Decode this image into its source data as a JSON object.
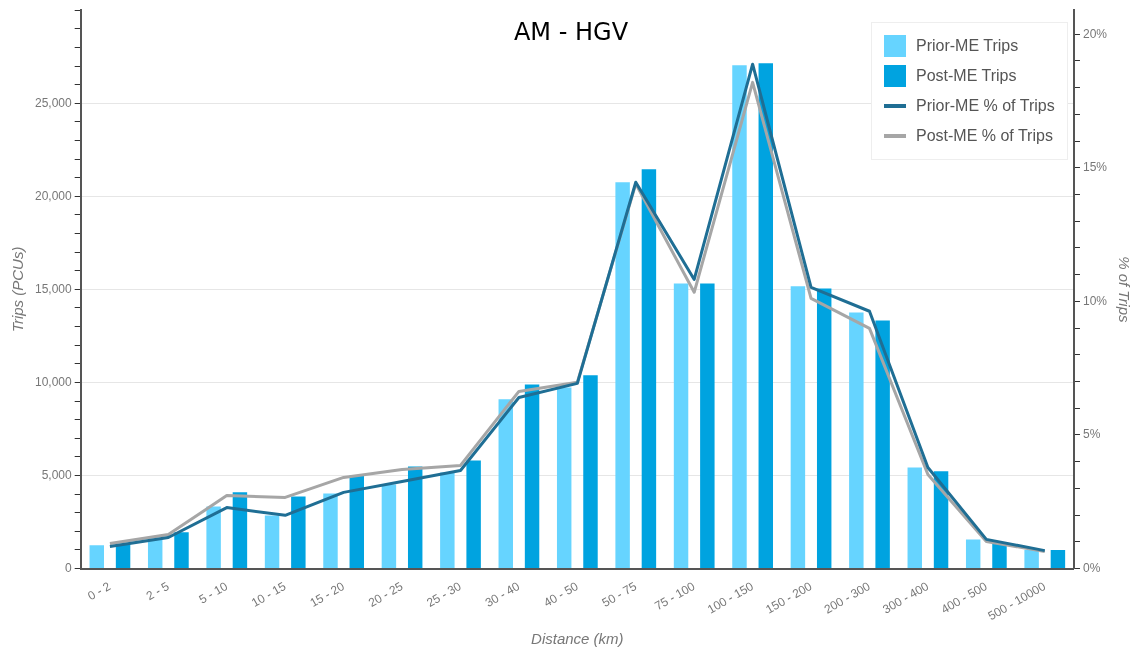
{
  "chart_data": {
    "type": "bar",
    "title": "AM - HGV",
    "xlabel": "Distance (km)",
    "ylabel": "Trips (PCUs)",
    "y2label": "% of Trips",
    "categories": [
      "0 - 2",
      "2 - 5",
      "5 - 10",
      "10 - 15",
      "15 - 20",
      "20 - 25",
      "25 - 30",
      "30 - 40",
      "40 - 50",
      "50 - 75",
      "75 - 100",
      "100 - 150",
      "150 - 200",
      "200 - 300",
      "300 - 400",
      "400 - 500",
      "500 - 10000"
    ],
    "series": [
      {
        "name": "Prior-ME Trips",
        "color": "#66d4ff",
        "values": [
          1250,
          1600,
          3330,
          2850,
          4030,
          4520,
          5160,
          9090,
          9730,
          20750,
          15320,
          27040,
          15160,
          13760,
          5430,
          1560,
          1000
        ]
      },
      {
        "name": "Post-ME Trips",
        "color": "#00a3e0",
        "values": [
          1300,
          1950,
          4100,
          3870,
          5000,
          5480,
          5800,
          9890,
          10380,
          21450,
          15320,
          27150,
          15050,
          13330,
          5220,
          1340,
          1000
        ]
      },
      {
        "name": "Prior-ME % of Trips",
        "type": "line",
        "axis": "y2",
        "color": "#1f6e94",
        "values": [
          0.82,
          1.16,
          2.28,
          1.99,
          2.85,
          3.26,
          3.67,
          6.4,
          6.93,
          14.46,
          10.82,
          18.88,
          10.52,
          9.63,
          3.78,
          1.09,
          0.67
        ]
      },
      {
        "name": "Post-ME % of Trips",
        "type": "line",
        "axis": "y2",
        "color": "#a6a6a6",
        "values": [
          0.94,
          1.27,
          2.73,
          2.66,
          3.41,
          3.71,
          3.86,
          6.63,
          6.97,
          14.4,
          10.34,
          18.2,
          10.11,
          8.99,
          3.52,
          1.01,
          0.64
        ]
      }
    ],
    "ylim": [
      0,
      30000
    ],
    "yticks": [
      0,
      {
        "value": 1000,
        "label": null
      },
      {
        "value": 2000,
        "label": null
      },
      {
        "value": 3000,
        "label": null
      },
      {
        "value": 4000,
        "label": null
      },
      {
        "value": 5000,
        "label": "5,000"
      },
      {
        "value": 6000,
        "label": null
      },
      {
        "value": 7000,
        "label": null
      },
      {
        "value": 8000,
        "label": null
      },
      {
        "value": 9000,
        "label": null
      },
      {
        "value": 10000,
        "label": "10,000"
      },
      {
        "value": 11000,
        "label": null
      },
      {
        "value": 12000,
        "label": null
      },
      {
        "value": 13000,
        "label": null
      },
      {
        "value": 14000,
        "label": null
      },
      {
        "value": 15000,
        "label": "15,000"
      },
      {
        "value": 16000,
        "label": null
      },
      {
        "value": 17000,
        "label": null
      },
      {
        "value": 18000,
        "label": null
      },
      {
        "value": 19000,
        "label": null
      },
      {
        "value": 20000,
        "label": "20,000"
      },
      {
        "value": 21000,
        "label": null
      },
      {
        "value": 22000,
        "label": null
      },
      {
        "value": 23000,
        "label": null
      },
      {
        "value": 24000,
        "label": null
      },
      {
        "value": 25000,
        "label": "25,000"
      },
      {
        "value": 26000,
        "label": null
      },
      {
        "value": 27000,
        "label": null
      },
      {
        "value": 28000,
        "label": null
      },
      {
        "value": 29000,
        "label": null
      },
      {
        "value": 30000,
        "label": null
      }
    ],
    "y2lim": [
      0,
      20.9
    ],
    "y2ticks": [
      {
        "value": 0,
        "label": "0%"
      },
      {
        "value": 1,
        "label": null
      },
      {
        "value": 2,
        "label": null
      },
      {
        "value": 3,
        "label": null
      },
      {
        "value": 4,
        "label": null
      },
      {
        "value": 5,
        "label": "5%"
      },
      {
        "value": 6,
        "label": null
      },
      {
        "value": 7,
        "label": null
      },
      {
        "value": 8,
        "label": null
      },
      {
        "value": 9,
        "label": null
      },
      {
        "value": 10,
        "label": "10%"
      },
      {
        "value": 11,
        "label": null
      },
      {
        "value": 12,
        "label": null
      },
      {
        "value": 13,
        "label": null
      },
      {
        "value": 14,
        "label": null
      },
      {
        "value": 15,
        "label": "15%"
      },
      {
        "value": 16,
        "label": null
      },
      {
        "value": 17,
        "label": null
      },
      {
        "value": 18,
        "label": null
      },
      {
        "value": 19,
        "label": null
      },
      {
        "value": 20,
        "label": "20%"
      }
    ],
    "grid": "y",
    "legend": "top right",
    "marker": "none",
    "line_style": "solid"
  }
}
